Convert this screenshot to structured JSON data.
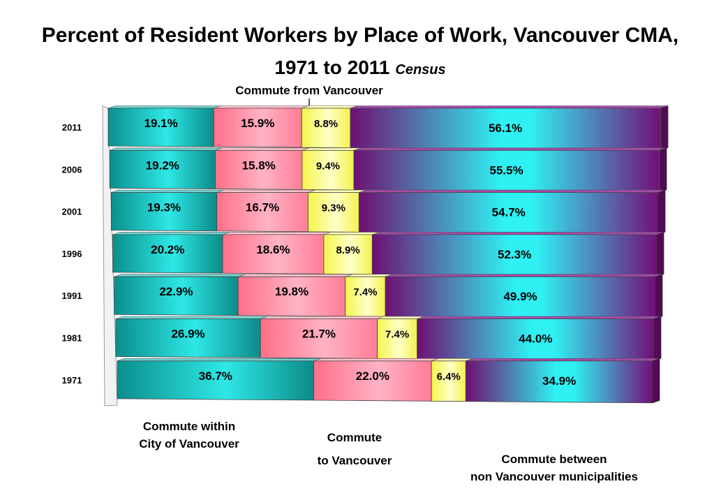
{
  "chart_data": {
    "type": "bar",
    "stacked": true,
    "orientation": "horizontal",
    "percent_stacked": true,
    "title": "Percent of Resident Workers by Place of Work, Vancouver CMA,",
    "title_line2": "1971 to 2011",
    "title_suffix": "Census",
    "categories": [
      "2011",
      "2006",
      "2001",
      "1996",
      "1991",
      "1981",
      "1971"
    ],
    "series": [
      {
        "name": "Commute within City of Vancouver",
        "color": "#11a9a6",
        "values": [
          19.1,
          19.2,
          19.3,
          20.2,
          22.9,
          26.9,
          36.7
        ],
        "labels": [
          "19.1%",
          "19.2%",
          "19.3%",
          "20.2%",
          "22.9%",
          "26.9%",
          "36.7%"
        ]
      },
      {
        "name": "Commute to Vancouver",
        "color": "#ff8fa6",
        "values": [
          15.9,
          15.8,
          16.7,
          18.6,
          19.8,
          21.7,
          22.0
        ],
        "labels": [
          "15.9%",
          "15.8%",
          "16.7%",
          "18.6%",
          "19.8%",
          "21.7%",
          "22.0%"
        ]
      },
      {
        "name": "Commute from Vancouver",
        "color": "#ffff77",
        "values": [
          8.8,
          9.4,
          9.3,
          8.9,
          7.4,
          7.4,
          6.4
        ],
        "labels": [
          "8.8%",
          "9.4%",
          "9.3%",
          "8.9%",
          "7.4%",
          "7.4%",
          "6.4%"
        ]
      },
      {
        "name": "Commute between non Vancouver municipalities",
        "color": "#7a1680",
        "values": [
          56.1,
          55.5,
          54.7,
          52.3,
          49.9,
          44.0,
          34.9
        ],
        "labels": [
          "56.1%",
          "55.5%",
          "54.7%",
          "52.3%",
          "49.9%",
          "44.0%",
          "34.9%"
        ]
      }
    ],
    "annotations": {
      "from_vancouver": "Commute from Vancouver",
      "within_line1": "Commute within",
      "within_line2": "City of Vancouver",
      "to_line1": "Commute",
      "to_line2": "to Vancouver",
      "between_line1": "Commute between",
      "between_line2": "non Vancouver municipalities"
    },
    "xlim": [
      0,
      100
    ],
    "grid": false,
    "legend": "none"
  }
}
